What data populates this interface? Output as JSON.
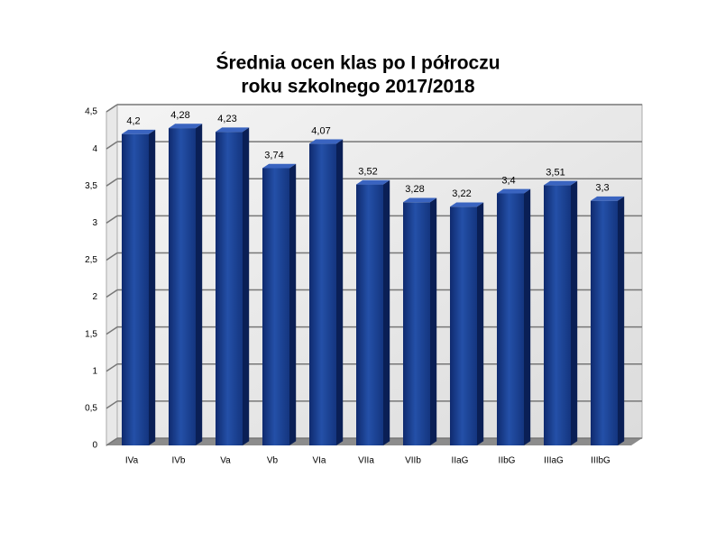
{
  "chart_data": {
    "type": "bar3d",
    "title": [
      "Średnia ocen klas po I półroczu",
      "roku szkolnego 2017/2018"
    ],
    "categories": [
      "IVa",
      "IVb",
      "Va",
      "Vb",
      "VIa",
      "VIIa",
      "VIIb",
      "IIaG",
      "IIbG",
      "IIIaG",
      "IIIbG"
    ],
    "values": [
      4.2,
      4.28,
      4.23,
      3.74,
      4.07,
      3.52,
      3.28,
      3.22,
      3.4,
      3.51,
      3.3
    ],
    "value_labels": [
      "4,2",
      "4,28",
      "4,23",
      "3,74",
      "4,07",
      "3,52",
      "3,28",
      "3,22",
      "3,4",
      "3,51",
      "3,3"
    ],
    "color": "#1f3f8f",
    "ylim": [
      0,
      4.5
    ],
    "yticks": [
      0,
      {
        "value": 0.5,
        "label": "0,5"
      },
      1,
      {
        "value": 1.5,
        "label": "1,5"
      },
      2,
      {
        "value": 2.5,
        "label": "2,5"
      },
      3,
      {
        "value": 3.5,
        "label": "3,5"
      },
      4,
      {
        "value": 4.5,
        "label": "4,5"
      }
    ],
    "grid": true
  }
}
